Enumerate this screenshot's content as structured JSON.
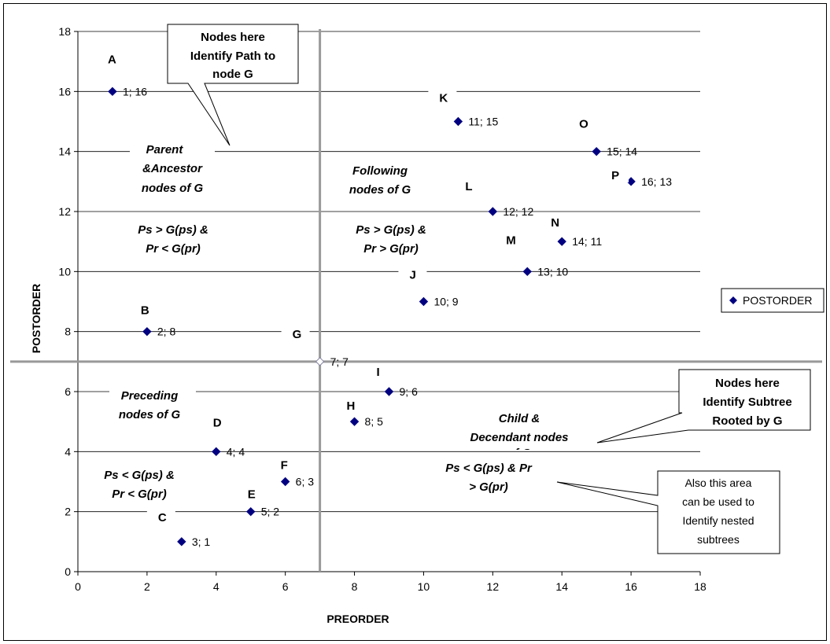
{
  "chart_data": {
    "type": "scatter",
    "xlabel": "PREORDER",
    "ylabel": "POSTORDER",
    "xlim": [
      0,
      18
    ],
    "ylim": [
      0,
      18
    ],
    "x_ticks": [
      "0",
      "2",
      "4",
      "6",
      "8",
      "10",
      "12",
      "14",
      "16",
      "18"
    ],
    "y_ticks": [
      "0",
      "2",
      "4",
      "6",
      "8",
      "10",
      "12",
      "14",
      "16",
      "18"
    ],
    "grid": "horizontal",
    "legend_position": "right",
    "series": [
      {
        "name": "POSTORDER",
        "color": "#000080",
        "points": [
          {
            "node": "A",
            "x": 1,
            "y": 16,
            "label": "1; 16"
          },
          {
            "node": "B",
            "x": 2,
            "y": 8,
            "label": "2; 8"
          },
          {
            "node": "C",
            "x": 3,
            "y": 1,
            "label": "3; 1"
          },
          {
            "node": "D",
            "x": 4,
            "y": 4,
            "label": "4; 4"
          },
          {
            "node": "E",
            "x": 5,
            "y": 2,
            "label": "5; 2"
          },
          {
            "node": "F",
            "x": 6,
            "y": 3,
            "label": "6; 3"
          },
          {
            "node": "G",
            "x": 7,
            "y": 7,
            "label": "7; 7"
          },
          {
            "node": "H",
            "x": 8,
            "y": 5,
            "label": "8; 5"
          },
          {
            "node": "I",
            "x": 9,
            "y": 6,
            "label": "9; 6"
          },
          {
            "node": "J",
            "x": 10,
            "y": 9,
            "label": "10; 9"
          },
          {
            "node": "K",
            "x": 11,
            "y": 15,
            "label": "11; 15"
          },
          {
            "node": "L",
            "x": 12,
            "y": 12,
            "label": "12; 12"
          },
          {
            "node": "M",
            "x": 13,
            "y": 10,
            "label": "13; 10"
          },
          {
            "node": "N",
            "x": 14,
            "y": 11,
            "label": "14; 11"
          },
          {
            "node": "O",
            "x": 15,
            "y": 14,
            "label": "15; 14"
          },
          {
            "node": "P",
            "x": 16,
            "y": 13,
            "label": "16; 13"
          }
        ]
      }
    ],
    "reference_lines": {
      "x": 7,
      "y": 7
    },
    "regions": {
      "top_left": {
        "title_1": "Parent",
        "title_2": "&Ancestor",
        "title_3": "nodes of G",
        "rule_1": "Ps > G(ps) &",
        "rule_2": "Pr < G(pr)"
      },
      "top_right": {
        "title_1": "Following",
        "title_2": "nodes of G",
        "rule_1": "Ps > G(ps) &",
        "rule_2": "Pr > G(pr)"
      },
      "bottom_left": {
        "title_1": "Preceding",
        "title_2": "nodes of G",
        "rule_1": "Ps < G(ps) &",
        "rule_2": "Pr < G(pr)"
      },
      "bottom_right": {
        "title_1": "Child &",
        "title_2": "Decendant  nodes",
        "title_3": "of G",
        "rule_1": "Ps < G(ps) & Pr",
        "rule_2": "> G(pr)"
      }
    },
    "callouts": {
      "path": {
        "line_1": "Nodes here",
        "line_2": "Identify Path to",
        "line_3": "node G"
      },
      "subtree": {
        "line_1": "Nodes here",
        "line_2": "Identify Subtree",
        "line_3": "Rooted by G"
      },
      "nested": {
        "line_1": "Also this area",
        "line_2": "can be used to",
        "line_3": "Identify nested",
        "line_4": "subtrees"
      }
    }
  }
}
